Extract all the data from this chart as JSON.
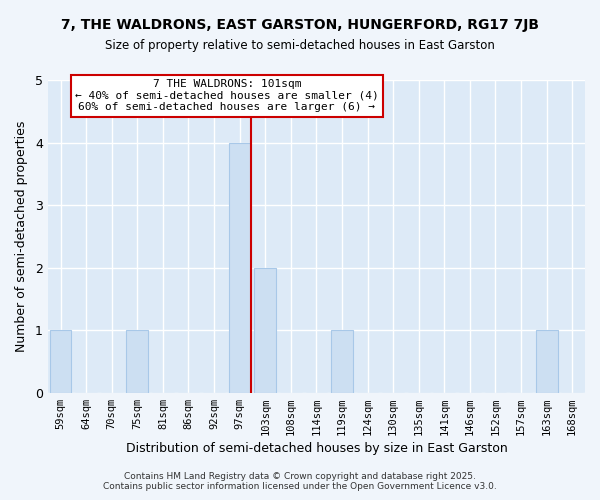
{
  "title": "7, THE WALDRONS, EAST GARSTON, HUNGERFORD, RG17 7JB",
  "subtitle": "Size of property relative to semi-detached houses in East Garston",
  "xlabel": "Distribution of semi-detached houses by size in East Garston",
  "ylabel": "Number of semi-detached properties",
  "footer_line1": "Contains HM Land Registry data © Crown copyright and database right 2025.",
  "footer_line2": "Contains public sector information licensed under the Open Government Licence v3.0.",
  "bin_labels": [
    "59sqm",
    "64sqm",
    "70sqm",
    "75sqm",
    "81sqm",
    "86sqm",
    "92sqm",
    "97sqm",
    "103sqm",
    "108sqm",
    "114sqm",
    "119sqm",
    "124sqm",
    "130sqm",
    "135sqm",
    "141sqm",
    "146sqm",
    "152sqm",
    "157sqm",
    "163sqm",
    "168sqm"
  ],
  "bar_values": [
    1,
    0,
    0,
    1,
    0,
    0,
    0,
    4,
    2,
    0,
    0,
    1,
    0,
    0,
    0,
    0,
    0,
    0,
    0,
    1,
    0
  ],
  "bar_color": "#ccdff2",
  "bar_edge_color": "#a8c8e8",
  "highlight_bin_index": 7,
  "highlight_line_color": "#cc0000",
  "ylim": [
    0,
    5
  ],
  "yticks": [
    0,
    1,
    2,
    3,
    4,
    5
  ],
  "annotation_title": "7 THE WALDRONS: 101sqm",
  "annotation_line1": "← 40% of semi-detached houses are smaller (4)",
  "annotation_line2": "60% of semi-detached houses are larger (6) →",
  "annotation_box_color": "#ffffff",
  "annotation_box_edge_color": "#cc0000",
  "background_color": "#f0f5fb",
  "plot_background_color": "#ddeaf7",
  "grid_color": "#ffffff"
}
